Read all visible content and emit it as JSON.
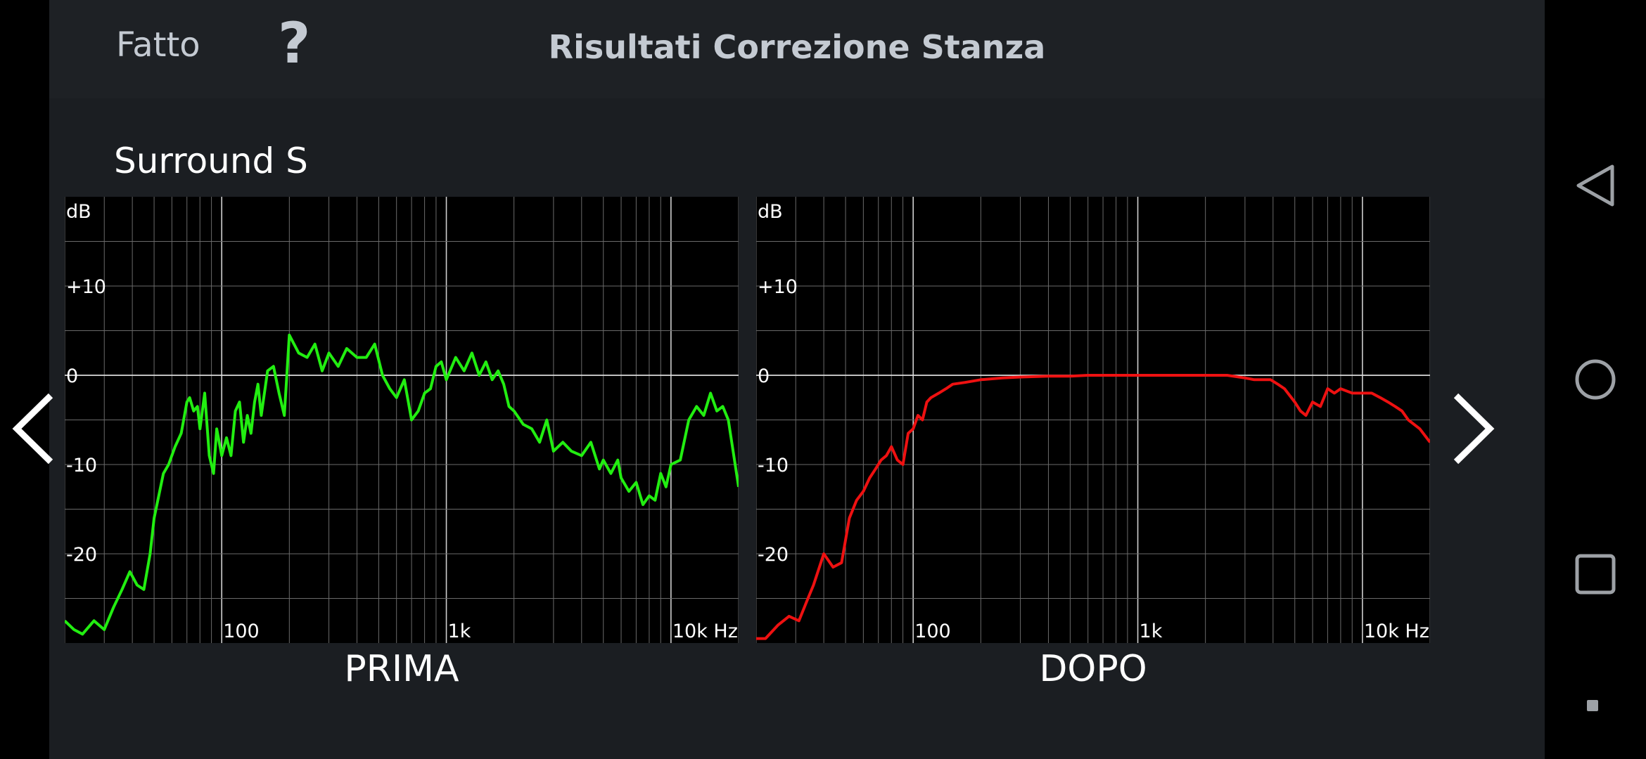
{
  "header": {
    "done_label": "Fatto",
    "help_label": "?",
    "title": "Risultati Correzione Stanza"
  },
  "channel_name": "Surround S",
  "charts": {
    "before": {
      "label": "PRIMA",
      "line_color": "#22ee11"
    },
    "after": {
      "label": "DOPO",
      "line_color": "#ee1111"
    }
  },
  "icons": {
    "prev": "chevron-left-icon",
    "next": "chevron-right-icon",
    "back": "triangle-back-icon",
    "home": "circle-home-icon",
    "recents": "square-recents-icon"
  },
  "chart_data": [
    {
      "type": "line",
      "title": "PRIMA",
      "ylabel": "dB",
      "xscale": "log",
      "xlim": [
        20,
        20000
      ],
      "ylim": [
        -30,
        20
      ],
      "x_ticks": [
        "100",
        "1k",
        "10k Hz"
      ],
      "y_ticks": [
        "+10",
        "0",
        "-10",
        "-20"
      ],
      "grid": true,
      "series": [
        {
          "color": "#22ee11",
          "x": [
            20,
            22,
            24,
            27,
            30,
            33,
            36,
            39,
            42,
            45,
            48,
            50,
            55,
            58,
            62,
            66,
            70,
            72,
            75,
            78,
            80,
            84,
            88,
            92,
            95,
            100,
            105,
            110,
            115,
            120,
            125,
            130,
            135,
            140,
            145,
            150,
            160,
            170,
            180,
            190,
            200,
            220,
            240,
            260,
            280,
            300,
            330,
            360,
            400,
            440,
            480,
            520,
            560,
            600,
            650,
            700,
            750,
            800,
            850,
            900,
            950,
            1000,
            1100,
            1200,
            1300,
            1400,
            1500,
            1600,
            1700,
            1800,
            1900,
            2000,
            2200,
            2400,
            2600,
            2800,
            3000,
            3300,
            3600,
            4000,
            4400,
            4800,
            5000,
            5400,
            5800,
            6000,
            6500,
            7000,
            7500,
            8000,
            8500,
            9000,
            9500,
            10000,
            11000,
            12000,
            13000,
            14000,
            15000,
            16000,
            17000,
            18000,
            20000
          ],
          "y": [
            -27.5,
            -28.5,
            -29,
            -27.5,
            -28.5,
            -26,
            -24,
            -22,
            -23.5,
            -24,
            -20,
            -16,
            -11,
            -10,
            -8,
            -6.5,
            -3,
            -2.5,
            -4,
            -3.5,
            -6,
            -2,
            -9,
            -11,
            -6,
            -9,
            -7,
            -9,
            -4,
            -3,
            -7.5,
            -4.5,
            -6.5,
            -3,
            -1,
            -4.5,
            0.5,
            1,
            -2,
            -4.5,
            4.5,
            2.5,
            2,
            3.5,
            0.5,
            2.5,
            1,
            3,
            2,
            2,
            3.5,
            0,
            -1.5,
            -2.5,
            -0.5,
            -5,
            -4,
            -2,
            -1.5,
            1,
            1.5,
            -0.5,
            2,
            0.5,
            2.5,
            0,
            1.5,
            -0.5,
            0.5,
            -1,
            -3.5,
            -4,
            -5.5,
            -6,
            -7.5,
            -5,
            -8.5,
            -7.5,
            -8.5,
            -9,
            -7.5,
            -10.5,
            -9.5,
            -11,
            -9.5,
            -11.5,
            -13,
            -12,
            -14.5,
            -13.5,
            -14,
            -11,
            -12.5,
            -10,
            -9.5,
            -5,
            -3.5,
            -4.5,
            -2,
            -4,
            -3.5,
            -5,
            -12.5
          ]
        }
      ]
    },
    {
      "type": "line",
      "title": "DOPO",
      "ylabel": "dB",
      "xscale": "log",
      "xlim": [
        20,
        20000
      ],
      "ylim": [
        -30,
        20
      ],
      "x_ticks": [
        "100",
        "1k",
        "10k Hz"
      ],
      "y_ticks": [
        "+10",
        "0",
        "-10",
        "-20"
      ],
      "grid": true,
      "series": [
        {
          "color": "#ee1111",
          "x": [
            20,
            22,
            25,
            28,
            31,
            34,
            36,
            40,
            44,
            48,
            52,
            56,
            60,
            64,
            68,
            72,
            76,
            80,
            85,
            90,
            95,
            100,
            105,
            110,
            115,
            120,
            130,
            140,
            150,
            170,
            200,
            250,
            300,
            400,
            500,
            600,
            800,
            1000,
            1500,
            2000,
            2500,
            3000,
            3300,
            3600,
            3900,
            4200,
            4500,
            5000,
            5300,
            5600,
            6000,
            6500,
            7000,
            7500,
            8000,
            9000,
            10000,
            11000,
            12000,
            13000,
            14000,
            15000,
            16000,
            18000,
            20000
          ],
          "y": [
            -29.5,
            -29.5,
            -28,
            -27,
            -27.5,
            -25,
            -23.5,
            -20,
            -21.5,
            -21,
            -16,
            -14,
            -13,
            -11.5,
            -10.5,
            -9.5,
            -9,
            -8,
            -9.5,
            -10,
            -6.5,
            -6,
            -4.5,
            -5,
            -3,
            -2.5,
            -2,
            -1.5,
            -1,
            -0.8,
            -0.5,
            -0.3,
            -0.2,
            -0.1,
            -0.1,
            0,
            0,
            0,
            0,
            0,
            0,
            -0.3,
            -0.5,
            -0.5,
            -0.5,
            -1,
            -1.5,
            -3,
            -4,
            -4.5,
            -3,
            -3.5,
            -1.5,
            -2,
            -1.5,
            -2,
            -2,
            -2,
            -2.5,
            -3,
            -3.5,
            -4,
            -5,
            -6,
            -7.5
          ]
        }
      ]
    }
  ]
}
